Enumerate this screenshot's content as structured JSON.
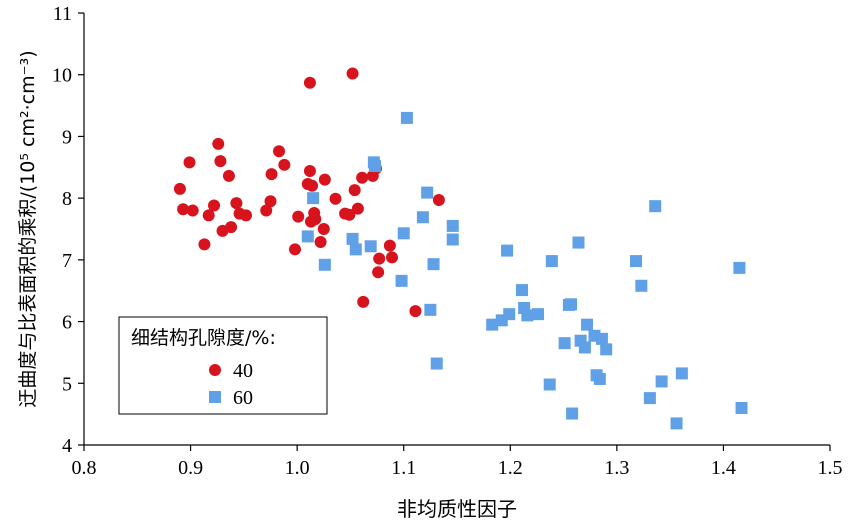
{
  "chart_data": {
    "type": "scatter",
    "xlabel": "非均质性因子",
    "ylabel": "迂曲度与比表面积的乘积/(10⁵ cm²·cm⁻³)",
    "xlim": [
      0.8,
      1.5
    ],
    "ylim": [
      4,
      11
    ],
    "x_ticks": [
      "0.8",
      "0.9",
      "1.0",
      "1.1",
      "1.2",
      "1.3",
      "1.4",
      "1.5"
    ],
    "y_ticks": [
      "4",
      "5",
      "6",
      "7",
      "8",
      "9",
      "10",
      "11"
    ],
    "grid": false,
    "legend": {
      "title": "细结构孔隙度/%:",
      "placement": "bottom-left"
    },
    "series": [
      {
        "name": "40",
        "marker": "circle",
        "color": "#d7141e",
        "points": [
          [
            0.89,
            8.15
          ],
          [
            0.893,
            7.82
          ],
          [
            0.899,
            8.58
          ],
          [
            0.902,
            7.8
          ],
          [
            0.913,
            7.25
          ],
          [
            0.917,
            7.72
          ],
          [
            0.922,
            7.88
          ],
          [
            0.926,
            8.88
          ],
          [
            0.928,
            8.6
          ],
          [
            0.93,
            7.47
          ],
          [
            0.936,
            8.36
          ],
          [
            0.938,
            7.53
          ],
          [
            0.943,
            7.92
          ],
          [
            0.946,
            7.75
          ],
          [
            0.952,
            7.72
          ],
          [
            0.971,
            7.8
          ],
          [
            0.975,
            7.95
          ],
          [
            0.976,
            8.39
          ],
          [
            0.983,
            8.76
          ],
          [
            0.988,
            8.54
          ],
          [
            0.998,
            7.17
          ],
          [
            1.001,
            7.7
          ],
          [
            1.01,
            8.23
          ],
          [
            1.012,
            8.44
          ],
          [
            1.013,
            7.62
          ],
          [
            1.014,
            8.2
          ],
          [
            1.016,
            7.76
          ],
          [
            1.017,
            7.66
          ],
          [
            1.022,
            7.29
          ],
          [
            1.025,
            7.5
          ],
          [
            1.026,
            8.3
          ],
          [
            1.012,
            9.87
          ],
          [
            1.036,
            7.99
          ],
          [
            1.045,
            7.75
          ],
          [
            1.049,
            7.73
          ],
          [
            1.052,
            10.02
          ],
          [
            1.054,
            8.13
          ],
          [
            1.057,
            7.83
          ],
          [
            1.061,
            8.33
          ],
          [
            1.062,
            6.32
          ],
          [
            1.071,
            8.36
          ],
          [
            1.074,
            8.48
          ],
          [
            1.076,
            6.8
          ],
          [
            1.077,
            7.02
          ],
          [
            1.087,
            7.23
          ],
          [
            1.089,
            7.04
          ],
          [
            1.111,
            6.17
          ],
          [
            1.133,
            7.97
          ]
        ]
      },
      {
        "name": "60",
        "marker": "square",
        "color": "#5fa0e6",
        "points": [
          [
            1.01,
            7.38
          ],
          [
            1.015,
            8.0
          ],
          [
            1.026,
            6.92
          ],
          [
            1.052,
            7.34
          ],
          [
            1.055,
            7.17
          ],
          [
            1.069,
            7.22
          ],
          [
            1.072,
            8.58
          ],
          [
            1.073,
            8.52
          ],
          [
            1.098,
            6.66
          ],
          [
            1.1,
            7.43
          ],
          [
            1.103,
            9.3
          ],
          [
            1.118,
            7.69
          ],
          [
            1.122,
            8.09
          ],
          [
            1.125,
            6.19
          ],
          [
            1.128,
            6.93
          ],
          [
            1.131,
            5.32
          ],
          [
            1.146,
            7.55
          ],
          [
            1.146,
            7.33
          ],
          [
            1.183,
            5.95
          ],
          [
            1.192,
            6.02
          ],
          [
            1.197,
            7.15
          ],
          [
            1.199,
            6.12
          ],
          [
            1.211,
            6.51
          ],
          [
            1.213,
            6.22
          ],
          [
            1.216,
            6.1
          ],
          [
            1.226,
            6.12
          ],
          [
            1.237,
            4.98
          ],
          [
            1.239,
            6.98
          ],
          [
            1.251,
            5.65
          ],
          [
            1.255,
            6.27
          ],
          [
            1.257,
            6.28
          ],
          [
            1.258,
            4.51
          ],
          [
            1.264,
            7.28
          ],
          [
            1.266,
            5.69
          ],
          [
            1.27,
            5.58
          ],
          [
            1.272,
            5.95
          ],
          [
            1.279,
            5.77
          ],
          [
            1.281,
            5.13
          ],
          [
            1.284,
            5.07
          ],
          [
            1.286,
            5.72
          ],
          [
            1.29,
            5.55
          ],
          [
            1.318,
            6.98
          ],
          [
            1.323,
            6.58
          ],
          [
            1.331,
            4.76
          ],
          [
            1.336,
            7.87
          ],
          [
            1.342,
            5.03
          ],
          [
            1.356,
            4.35
          ],
          [
            1.361,
            5.16
          ],
          [
            1.415,
            6.87
          ],
          [
            1.417,
            4.6
          ]
        ]
      }
    ]
  }
}
